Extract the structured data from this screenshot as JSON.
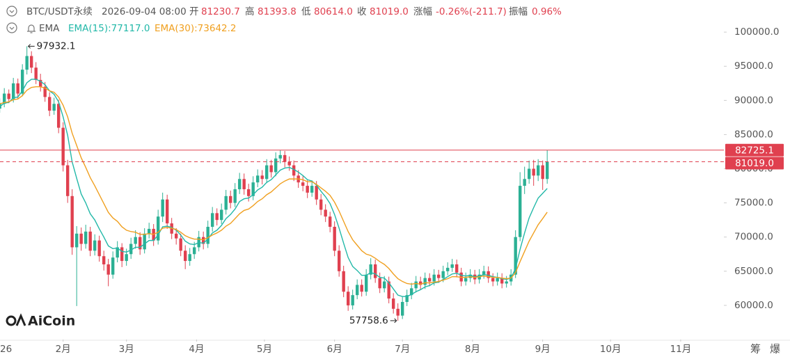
{
  "header": {
    "symbol": "BTC/USDT永续",
    "datetime": "2026-09-04 08:00",
    "open_label": "开",
    "open": "81230.7",
    "high_label": "高",
    "high": "81393.8",
    "low_label": "低",
    "low": "80614.0",
    "close_label": "收",
    "close": "81019.0",
    "change_label": "涨幅",
    "change": "-0.26%(-211.7)",
    "amplitude_label": "振幅",
    "amplitude": "0.96%",
    "indicator": "EMA"
  },
  "watermark": "AiCoin",
  "toolbar": [
    "筹",
    "爆"
  ],
  "chart_data": {
    "type": "candlestick",
    "up_color": "#2bb094",
    "down_color": "#e0404f",
    "xlim": [
      3.1,
      323.1
    ],
    "xticks": [
      {
        "value": 0,
        "label": "26"
      },
      {
        "value": 31,
        "label": "2月"
      },
      {
        "value": 59,
        "label": "3月"
      },
      {
        "value": 90,
        "label": "4月"
      },
      {
        "value": 120,
        "label": "5月"
      },
      {
        "value": 151,
        "label": "6月"
      },
      {
        "value": 181,
        "label": "7月"
      },
      {
        "value": 212,
        "label": "8月"
      },
      {
        "value": 243,
        "label": "9月"
      },
      {
        "value": 273,
        "label": "10月"
      },
      {
        "value": 304,
        "label": "11月"
      }
    ],
    "ylim": [
      55000,
      104700
    ],
    "yticks": [
      {
        "value": 60000,
        "label": "60000.0"
      },
      {
        "value": 65000,
        "label": "65000.0"
      },
      {
        "value": 70000,
        "label": "70000.0"
      },
      {
        "value": 75000,
        "label": "75000.0"
      },
      {
        "value": 80000,
        "label": "80000.0"
      },
      {
        "value": 85000,
        "label": "85000.0"
      },
      {
        "value": 90000,
        "label": "90000.0"
      },
      {
        "value": 95000,
        "label": "95000.0"
      },
      {
        "value": 100000,
        "label": "100000.0"
      }
    ],
    "x": [
      3,
      5,
      7,
      9,
      11,
      13,
      15,
      17,
      19,
      21,
      23,
      25,
      27,
      29,
      31,
      33,
      35,
      37,
      39,
      41,
      43,
      45,
      47,
      49,
      51,
      53,
      55,
      57,
      59,
      61,
      63,
      65,
      67,
      69,
      71,
      73,
      75,
      77,
      79,
      81,
      83,
      85,
      87,
      89,
      91,
      93,
      95,
      97,
      99,
      101,
      103,
      105,
      107,
      109,
      111,
      113,
      115,
      117,
      119,
      121,
      123,
      125,
      127,
      129,
      131,
      133,
      135,
      137,
      139,
      141,
      143,
      145,
      147,
      149,
      151,
      153,
      155,
      157,
      159,
      161,
      163,
      165,
      167,
      169,
      171,
      173,
      175,
      177,
      179,
      181,
      183,
      185,
      187,
      189,
      191,
      193,
      195,
      197,
      199,
      201,
      203,
      205,
      207,
      209,
      211,
      213,
      215,
      217,
      219,
      221,
      223,
      225,
      227,
      229,
      231,
      233,
      235,
      237,
      239,
      241,
      243,
      245
    ],
    "candles": [
      [
        88800,
        90300,
        88200,
        89500
      ],
      [
        89500,
        91800,
        89000,
        91000
      ],
      [
        91000,
        91600,
        89600,
        90200
      ],
      [
        90200,
        93300,
        89700,
        92500
      ],
      [
        92500,
        93200,
        90300,
        91000
      ],
      [
        91000,
        95300,
        90600,
        94500
      ],
      [
        94500,
        97932.1,
        93800,
        96500
      ],
      [
        96500,
        97200,
        94000,
        94800
      ],
      [
        94800,
        95600,
        92400,
        93000
      ],
      [
        93000,
        93900,
        91300,
        92000
      ],
      [
        92000,
        92700,
        89800,
        90500
      ],
      [
        90500,
        91200,
        87700,
        88500
      ],
      [
        88500,
        90400,
        87900,
        89500
      ],
      [
        89500,
        90100,
        85200,
        86000
      ],
      [
        86000,
        86800,
        79600,
        80500
      ],
      [
        80500,
        81300,
        75000,
        76000
      ],
      [
        76000,
        77000,
        67400,
        68500
      ],
      [
        68500,
        71600,
        59900,
        70500
      ],
      [
        70500,
        71400,
        68000,
        69000
      ],
      [
        69000,
        71800,
        68300,
        70800
      ],
      [
        70800,
        71500,
        67200,
        68000
      ],
      [
        68000,
        70400,
        67300,
        69500
      ],
      [
        69500,
        70200,
        66400,
        67200
      ],
      [
        67200,
        68000,
        65100,
        66000
      ],
      [
        66000,
        66800,
        62800,
        64500
      ],
      [
        64500,
        67900,
        63900,
        67000
      ],
      [
        67000,
        69400,
        66300,
        68500
      ],
      [
        68500,
        69100,
        65600,
        66500
      ],
      [
        66500,
        68300,
        65800,
        67500
      ],
      [
        67500,
        69900,
        66800,
        69000
      ],
      [
        69000,
        71000,
        68300,
        70000
      ],
      [
        70000,
        70700,
        67400,
        68200
      ],
      [
        68200,
        71300,
        67600,
        70500
      ],
      [
        70500,
        72100,
        69800,
        71200
      ],
      [
        71200,
        71900,
        68700,
        69500
      ],
      [
        69500,
        74000,
        68900,
        73000
      ],
      [
        73000,
        76500,
        72200,
        75500
      ],
      [
        75500,
        76200,
        71200,
        72000
      ],
      [
        72000,
        72800,
        69700,
        70500
      ],
      [
        70500,
        71300,
        68900,
        69800
      ],
      [
        69800,
        70500,
        67200,
        68000
      ],
      [
        68000,
        68800,
        65300,
        66500
      ],
      [
        66500,
        68400,
        65800,
        67500
      ],
      [
        67500,
        69300,
        66800,
        68500
      ],
      [
        68500,
        70900,
        67900,
        70000
      ],
      [
        70000,
        70800,
        68200,
        69000
      ],
      [
        69000,
        72400,
        68400,
        71500
      ],
      [
        71500,
        74400,
        70800,
        73500
      ],
      [
        73500,
        74200,
        71700,
        72500
      ],
      [
        72500,
        74900,
        71900,
        74000
      ],
      [
        74000,
        76900,
        73300,
        76000
      ],
      [
        76000,
        76800,
        74200,
        75000
      ],
      [
        75000,
        77900,
        74400,
        77000
      ],
      [
        77000,
        79400,
        76300,
        78500
      ],
      [
        78500,
        79300,
        76200,
        77000
      ],
      [
        77000,
        77800,
        75200,
        76000
      ],
      [
        76000,
        78900,
        75400,
        78000
      ],
      [
        78000,
        79900,
        77300,
        79000
      ],
      [
        79000,
        79800,
        77700,
        78500
      ],
      [
        78500,
        81400,
        77900,
        80500
      ],
      [
        80500,
        81300,
        78700,
        79500
      ],
      [
        79500,
        82400,
        78900,
        81500
      ],
      [
        81500,
        82700,
        80800,
        82000
      ],
      [
        82000,
        82600,
        80200,
        81000
      ],
      [
        81000,
        81800,
        79700,
        80500
      ],
      [
        80500,
        81200,
        78200,
        79000
      ],
      [
        79000,
        79800,
        77200,
        78000
      ],
      [
        78000,
        78900,
        76700,
        77500
      ],
      [
        77500,
        78300,
        75700,
        76500
      ],
      [
        76500,
        78300,
        75900,
        77500
      ],
      [
        77500,
        78200,
        74700,
        75500
      ],
      [
        75500,
        76300,
        73200,
        74000
      ],
      [
        74000,
        74800,
        72200,
        73000
      ],
      [
        73000,
        73700,
        70700,
        71500
      ],
      [
        71500,
        72300,
        67200,
        68000
      ],
      [
        68000,
        68800,
        64200,
        65000
      ],
      [
        65000,
        65800,
        61200,
        62000
      ],
      [
        62000,
        62800,
        59200,
        60000
      ],
      [
        60000,
        62300,
        59400,
        61500
      ],
      [
        61500,
        63800,
        60900,
        63000
      ],
      [
        63000,
        63800,
        61300,
        62000
      ],
      [
        62000,
        65300,
        61400,
        64500
      ],
      [
        64500,
        66900,
        63800,
        66000
      ],
      [
        66000,
        66700,
        63300,
        64000
      ],
      [
        64000,
        64800,
        61800,
        62500
      ],
      [
        62500,
        64300,
        61900,
        63500
      ],
      [
        63500,
        64200,
        60300,
        61000
      ],
      [
        61000,
        61800,
        58800,
        59500
      ],
      [
        59500,
        60300,
        57758.6,
        58500
      ],
      [
        58500,
        61300,
        58000,
        60500
      ],
      [
        60500,
        62300,
        59900,
        61500
      ],
      [
        61500,
        63300,
        60900,
        62500
      ],
      [
        62500,
        64300,
        61900,
        63500
      ],
      [
        63500,
        64200,
        62300,
        63000
      ],
      [
        63000,
        64800,
        62400,
        64000
      ],
      [
        64000,
        64700,
        62800,
        63500
      ],
      [
        63500,
        65300,
        62900,
        64500
      ],
      [
        64500,
        65200,
        63300,
        64000
      ],
      [
        64000,
        65800,
        63400,
        65000
      ],
      [
        65000,
        66300,
        64400,
        65500
      ],
      [
        65500,
        66800,
        64900,
        66000
      ],
      [
        66000,
        66700,
        64100,
        64800
      ],
      [
        64800,
        65500,
        62800,
        63500
      ],
      [
        63500,
        64800,
        62900,
        64000
      ],
      [
        64000,
        65300,
        63400,
        64500
      ],
      [
        64500,
        65200,
        63100,
        63800
      ],
      [
        63800,
        65300,
        63200,
        64500
      ],
      [
        64500,
        65800,
        63900,
        65000
      ],
      [
        65000,
        65700,
        63300,
        64000
      ],
      [
        64000,
        64700,
        62800,
        63500
      ],
      [
        63500,
        64800,
        62900,
        64000
      ],
      [
        64000,
        64700,
        62500,
        63200
      ],
      [
        63200,
        64300,
        62600,
        63500
      ],
      [
        63500,
        65300,
        62900,
        64500
      ],
      [
        64500,
        71000,
        64000,
        70000
      ],
      [
        70000,
        79500,
        69400,
        77500
      ],
      [
        77500,
        80300,
        76300,
        78500
      ],
      [
        78500,
        81200,
        77800,
        80000
      ],
      [
        80000,
        81300,
        77500,
        79000
      ],
      [
        79000,
        81400,
        78200,
        80500
      ],
      [
        80500,
        81200,
        76900,
        78500
      ],
      [
        78500,
        82725.1,
        77800,
        81019.0
      ]
    ],
    "series": [
      {
        "name": "EMA(15):77117.0",
        "color": "#22b8a8",
        "values": [
          89100,
          89600,
          89700,
          90400,
          90500,
          91400,
          92600,
          93100,
          93100,
          92800,
          92300,
          91400,
          90900,
          89800,
          87600,
          84900,
          81000,
          78600,
          76300,
          75000,
          73400,
          72500,
          71200,
          70000,
          68700,
          68300,
          68400,
          67900,
          67800,
          68100,
          68500,
          68500,
          69000,
          69500,
          69500,
          70300,
          71500,
          71600,
          71400,
          71000,
          70300,
          69400,
          69000,
          68900,
          69200,
          69100,
          69700,
          70600,
          71000,
          71700,
          72700,
          73300,
          74100,
          75200,
          75600,
          75700,
          76200,
          76900,
          77300,
          78000,
          78400,
          79100,
          79800,
          80100,
          80200,
          79900,
          79500,
          79000,
          78400,
          78200,
          77600,
          76700,
          75900,
          74900,
          73300,
          71300,
          69100,
          67000,
          65700,
          65100,
          64400,
          64400,
          64800,
          64600,
          64100,
          64000,
          63300,
          62400,
          61500,
          61300,
          61300,
          61600,
          62000,
          62300,
          62700,
          62900,
          63300,
          63400,
          63800,
          64200,
          64600,
          64700,
          64400,
          64300,
          64400,
          64200,
          64300,
          64500,
          64400,
          64200,
          64100,
          63900,
          63800,
          64000,
          65400,
          68200,
          70600,
          72800,
          74300,
          75700,
          76400,
          77117.0
        ]
      },
      {
        "name": "EMA(30):73642.2",
        "color": "#f0a020",
        "values": [
          89500,
          89700,
          89800,
          90100,
          90200,
          90700,
          91500,
          91900,
          92000,
          92000,
          91800,
          91400,
          91200,
          90500,
          89300,
          87600,
          85200,
          83400,
          81600,
          80200,
          78700,
          77500,
          76200,
          74900,
          73600,
          72800,
          72300,
          71500,
          71000,
          70800,
          70700,
          70400,
          70400,
          70500,
          70400,
          70700,
          71300,
          71400,
          71300,
          71100,
          70700,
          70200,
          69900,
          69700,
          69700,
          69600,
          69900,
          70300,
          70600,
          71000,
          71600,
          72000,
          72700,
          73400,
          73900,
          74100,
          74600,
          75200,
          75600,
          76200,
          76600,
          77200,
          77800,
          78200,
          78500,
          78500,
          78500,
          78400,
          78100,
          78100,
          77700,
          77200,
          76700,
          76100,
          75100,
          73800,
          72300,
          70800,
          69600,
          68800,
          68000,
          67500,
          67300,
          66900,
          66400,
          66000,
          65400,
          64600,
          63900,
          63500,
          63200,
          63100,
          63200,
          63100,
          63300,
          63300,
          63400,
          63500,
          63700,
          63900,
          64200,
          64200,
          64100,
          64100,
          64200,
          64100,
          64200,
          64300,
          64200,
          64100,
          64100,
          64000,
          63900,
          64000,
          64800,
          66400,
          67900,
          69400,
          70600,
          71800,
          72700,
          73642.2
        ]
      }
    ],
    "max_label": "97932.1",
    "max_x": 15,
    "max_value": 97932.1,
    "min_label": "57758.6",
    "min_x": 179,
    "min_value": 57758.6,
    "price_lines": [
      {
        "value": 82725.1,
        "label": "82725.1",
        "style": "solid"
      },
      {
        "value": 81019.0,
        "label": "81019.0",
        "style": "dashed"
      }
    ]
  }
}
